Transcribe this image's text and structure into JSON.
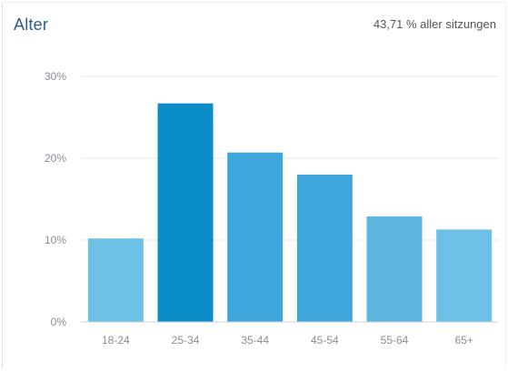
{
  "card": {
    "title": "Alter",
    "subtitle": "43,71 % aller sitzungen"
  },
  "colors": {
    "title": "#2e5d8a",
    "grid": "#e6e8eb",
    "axis_text": "#8a8f96",
    "bars": [
      "#6ec1e6",
      "#0a8cc7",
      "#3ea6da",
      "#3ea6da",
      "#5cb6e0",
      "#6ec1e6"
    ]
  },
  "chart_data": {
    "type": "bar",
    "categories": [
      "18-24",
      "25-34",
      "35-44",
      "45-54",
      "55-64",
      "65+"
    ],
    "values": [
      10.2,
      26.7,
      20.7,
      18.0,
      12.9,
      11.3
    ],
    "title": "Alter",
    "xlabel": "",
    "ylabel": "",
    "ylim": [
      0,
      30
    ],
    "yticks": [
      0,
      10,
      20,
      30
    ],
    "yticks_labels": [
      "0%",
      "10%",
      "20%",
      "30%"
    ],
    "grid": true,
    "legend": "none"
  }
}
